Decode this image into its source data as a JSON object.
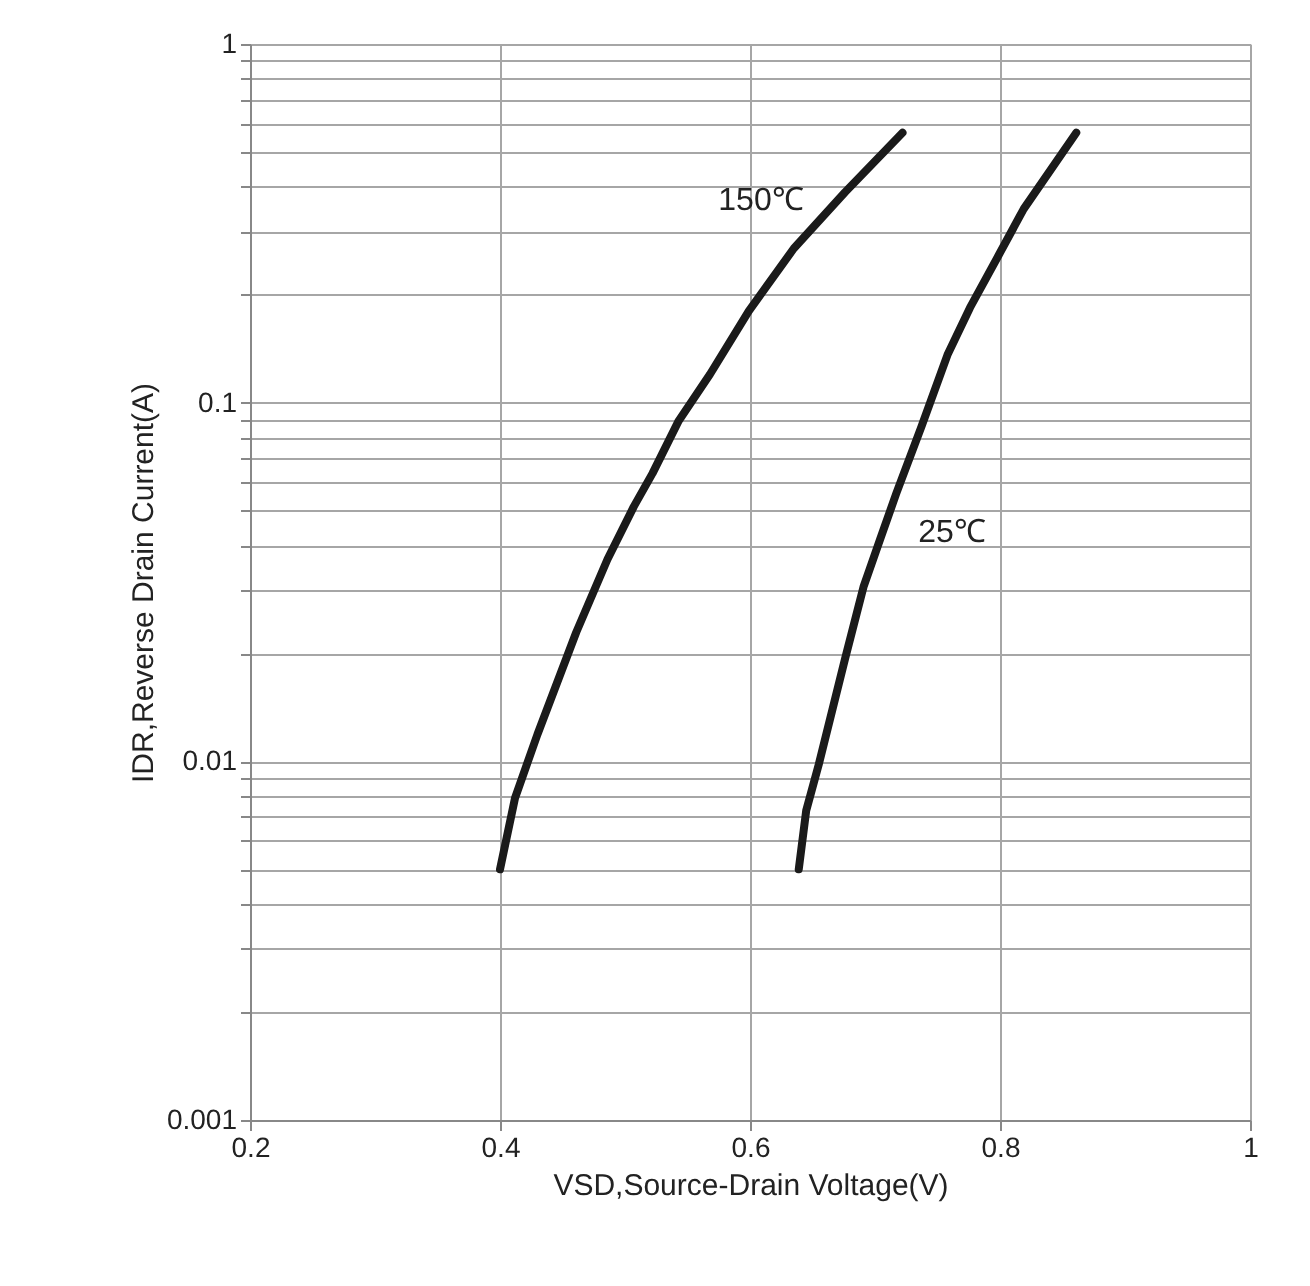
{
  "chart_data": {
    "type": "line",
    "xlabel": "VSD,Source-Drain Voltage(V)",
    "ylabel": "IDR,Reverse Drain Current(A)",
    "xlim": [
      0.2,
      1
    ],
    "xticks": [
      0.2,
      0.4,
      0.6,
      0.8,
      1
    ],
    "ylim": [
      0.001,
      1
    ],
    "log": "y",
    "grid": true,
    "marker": "none",
    "line_style": "solid",
    "yticks": [
      0.001,
      {
        "value": 0.002,
        "label": null
      },
      {
        "value": 0.003,
        "label": null
      },
      {
        "value": 0.004,
        "label": null
      },
      {
        "value": 0.005,
        "label": null
      },
      {
        "value": 0.006,
        "label": null
      },
      {
        "value": 0.007,
        "label": null
      },
      {
        "value": 0.008,
        "label": null
      },
      {
        "value": 0.009,
        "label": null
      },
      0.01,
      {
        "value": 0.02,
        "label": null
      },
      {
        "value": 0.03,
        "label": null
      },
      {
        "value": 0.04,
        "label": null
      },
      {
        "value": 0.05,
        "label": null
      },
      {
        "value": 0.06,
        "label": null
      },
      {
        "value": 0.07,
        "label": null
      },
      {
        "value": 0.08,
        "label": null
      },
      {
        "value": 0.09,
        "label": null
      },
      0.1,
      {
        "value": 0.2,
        "label": null
      },
      {
        "value": 0.3,
        "label": null
      },
      {
        "value": 0.4,
        "label": null
      },
      {
        "value": 0.5,
        "label": null
      },
      {
        "value": 0.6,
        "label": null
      },
      {
        "value": 0.7,
        "label": null
      },
      {
        "value": 0.8,
        "label": null
      },
      {
        "value": 0.9,
        "label": null
      },
      1
    ],
    "series": [
      {
        "name": "150℃",
        "color": "#1a1a1a",
        "x": [
          0.4,
          0.412,
          0.43,
          0.461,
          0.486,
          0.507,
          0.522,
          0.543,
          0.568,
          0.599,
          0.635,
          0.676,
          0.722
        ],
        "values": [
          0.005,
          0.0079,
          0.0119,
          0.0229,
          0.0366,
          0.0513,
          0.0635,
          0.0891,
          0.12,
          0.18,
          0.269,
          0.386,
          0.566
        ]
      },
      {
        "name": "25℃",
        "color": "#1a1a1a",
        "x": [
          0.639,
          0.645,
          0.655,
          0.676,
          0.691,
          0.704,
          0.717,
          0.737,
          0.758,
          0.776,
          0.799,
          0.819,
          0.861
        ],
        "values": [
          0.005,
          0.0073,
          0.0098,
          0.0193,
          0.0308,
          0.0415,
          0.0558,
          0.0855,
          0.136,
          0.184,
          0.258,
          0.347,
          0.566
        ]
      }
    ]
  }
}
